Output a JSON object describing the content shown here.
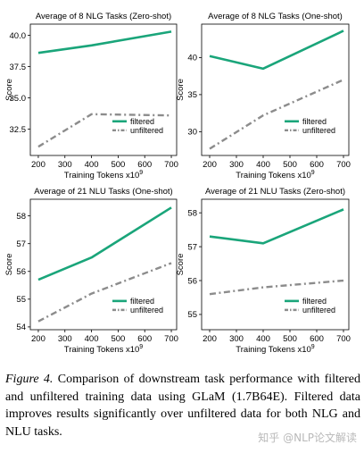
{
  "chart_data": [
    {
      "type": "line",
      "title": "Average of 8 NLG Tasks (Zero-shot)",
      "xlabel": "Training Tokens x10",
      "xlabel_sup": "9",
      "ylabel": "Score",
      "x": [
        200,
        400,
        700
      ],
      "xticks": [
        200,
        300,
        400,
        500,
        600,
        700
      ],
      "xlim": [
        170,
        720
      ],
      "yticks": [
        32.5,
        35.0,
        37.5,
        40.0
      ],
      "ytick_labels": [
        "32.5",
        "35.0",
        "37.5",
        "40.0"
      ],
      "ylim": [
        30.4,
        40.9
      ],
      "series": [
        {
          "name": "filtered",
          "values": [
            38.6,
            39.2,
            40.3
          ],
          "color": "#1aa57a",
          "style": "solid"
        },
        {
          "name": "unfiltered",
          "values": [
            31.1,
            33.7,
            33.6
          ],
          "color": "#8c8c8c",
          "style": "dashdot"
        }
      ],
      "legend": "right"
    },
    {
      "type": "line",
      "title": "Average of 8 NLG Tasks (One-shot)",
      "xlabel": "Training Tokens x10",
      "xlabel_sup": "9",
      "ylabel": "Score",
      "x": [
        200,
        400,
        700
      ],
      "xticks": [
        200,
        300,
        400,
        500,
        600,
        700
      ],
      "xlim": [
        170,
        720
      ],
      "yticks": [
        30,
        35,
        40
      ],
      "ytick_labels": [
        "30",
        "35",
        "40"
      ],
      "ylim": [
        26.8,
        44.5
      ],
      "series": [
        {
          "name": "filtered",
          "values": [
            40.2,
            38.5,
            43.6
          ],
          "color": "#1aa57a",
          "style": "solid"
        },
        {
          "name": "unfiltered",
          "values": [
            27.7,
            32.2,
            37.0
          ],
          "color": "#8c8c8c",
          "style": "dashdot"
        }
      ],
      "legend": "right"
    },
    {
      "type": "line",
      "title": "Average of 21 NLU Tasks (One-shot)",
      "xlabel": "Training Tokens x10",
      "xlabel_sup": "9",
      "ylabel": "Score",
      "x": [
        200,
        400,
        700
      ],
      "xticks": [
        200,
        300,
        400,
        500,
        600,
        700
      ],
      "xlim": [
        170,
        720
      ],
      "yticks": [
        54,
        55,
        56,
        57,
        58
      ],
      "ytick_labels": [
        "54",
        "55",
        "56",
        "57",
        "58"
      ],
      "ylim": [
        53.9,
        58.6
      ],
      "series": [
        {
          "name": "filtered",
          "values": [
            55.7,
            56.5,
            58.3
          ],
          "color": "#1aa57a",
          "style": "solid"
        },
        {
          "name": "unfiltered",
          "values": [
            54.2,
            55.2,
            56.3
          ],
          "color": "#8c8c8c",
          "style": "dashdot"
        }
      ],
      "legend": "bottom-right"
    },
    {
      "type": "line",
      "title": "Average of 21 NLU Tasks (Zero-shot)",
      "xlabel": "Training Tokens x10",
      "xlabel_sup": "9",
      "ylabel": "Score",
      "x": [
        200,
        400,
        700
      ],
      "xticks": [
        200,
        300,
        400,
        500,
        600,
        700
      ],
      "xlim": [
        170,
        720
      ],
      "yticks": [
        55,
        56,
        57,
        58
      ],
      "ytick_labels": [
        "55",
        "56",
        "57",
        "58"
      ],
      "ylim": [
        54.55,
        58.4
      ],
      "series": [
        {
          "name": "filtered",
          "values": [
            57.3,
            57.1,
            58.1
          ],
          "color": "#1aa57a",
          "style": "solid"
        },
        {
          "name": "unfiltered",
          "values": [
            55.6,
            55.8,
            56.0
          ],
          "color": "#8c8c8c",
          "style": "dashdot"
        }
      ],
      "legend": "bottom-right"
    }
  ],
  "caption": {
    "label": "Figure 4.",
    "text": " Comparison of downstream task performance with filtered and unfiltered training data using GLaM (1.7B64E). Filtered data improves results significantly over unfiltered data for both NLG and NLU tasks."
  },
  "watermark": "知乎 @NLP论文解读"
}
